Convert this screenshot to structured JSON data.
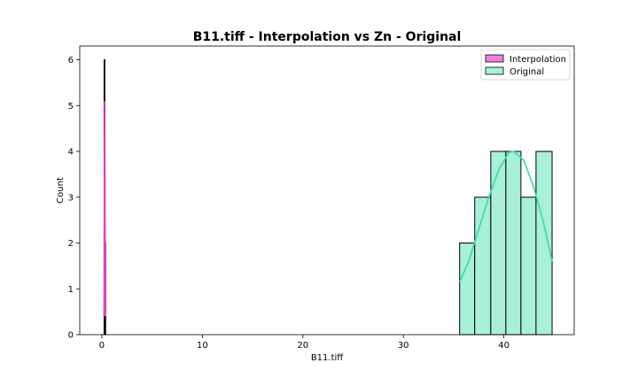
{
  "chart_data": {
    "type": "histogram",
    "title": "B11.tiff - Interpolation vs Zn - Original",
    "xlabel": "B11.tiff",
    "ylabel": "Count",
    "xlim": [
      -2.2,
      47.0
    ],
    "ylim": [
      0,
      6.3
    ],
    "xticks": [
      0,
      10,
      20,
      30,
      40
    ],
    "yticks": [
      0,
      1,
      2,
      3,
      4,
      5,
      6
    ],
    "legend_position": "upper right",
    "series": [
      {
        "name": "Interpolation",
        "color": "#ee82dd",
        "kde_color": "#e040d0",
        "bins": [
          {
            "x0": 0.22,
            "x1": 0.3,
            "count": 6
          },
          {
            "x0": 0.3,
            "x1": 0.38,
            "count": 2
          }
        ],
        "kde": [
          [
            0.22,
            0.4
          ],
          [
            0.24,
            2.0
          ],
          [
            0.26,
            4.0
          ],
          [
            0.28,
            5.1
          ],
          [
            0.3,
            4.0
          ],
          [
            0.32,
            2.0
          ],
          [
            0.34,
            0.4
          ]
        ]
      },
      {
        "name": "Original",
        "color": "#a8f0d6",
        "kde_color": "#3ad9a0",
        "bins": [
          {
            "x0": 35.6,
            "x1": 37.1,
            "count": 2
          },
          {
            "x0": 37.1,
            "x1": 38.7,
            "count": 3
          },
          {
            "x0": 38.7,
            "x1": 40.2,
            "count": 4
          },
          {
            "x0": 40.2,
            "x1": 41.7,
            "count": 4
          },
          {
            "x0": 41.7,
            "x1": 43.2,
            "count": 3
          },
          {
            "x0": 43.2,
            "x1": 44.8,
            "count": 4
          }
        ],
        "kde": [
          [
            35.6,
            1.15
          ],
          [
            36.5,
            1.6
          ],
          [
            37.5,
            2.3
          ],
          [
            38.5,
            3.0
          ],
          [
            39.5,
            3.6
          ],
          [
            40.5,
            3.98
          ],
          [
            41.0,
            4.0
          ],
          [
            42.0,
            3.8
          ],
          [
            43.0,
            3.2
          ],
          [
            44.0,
            2.4
          ],
          [
            44.8,
            1.6
          ]
        ]
      }
    ]
  }
}
